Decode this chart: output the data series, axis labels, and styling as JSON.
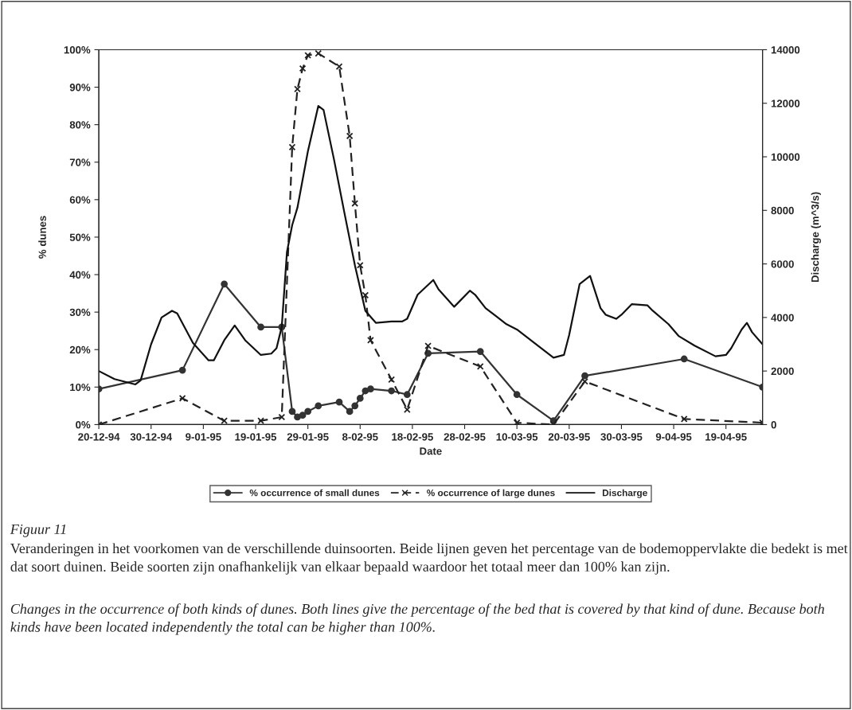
{
  "chart_data": {
    "type": "line",
    "xlabel": "Date",
    "ylabel": "% dunes",
    "y2label": "Discharge (m^3/s)",
    "xlim": [
      "1994-12-20",
      "1995-04-26"
    ],
    "xticks": [
      {
        "value": "1994-12-20",
        "label": "20-12-94"
      },
      {
        "value": "1994-12-30",
        "label": "30-12-94"
      },
      {
        "value": "1995-01-09",
        "label": "9-01-95"
      },
      {
        "value": "1995-01-19",
        "label": "19-01-95"
      },
      {
        "value": "1995-01-29",
        "label": "29-01-95"
      },
      {
        "value": "1995-02-08",
        "label": "8-02-95"
      },
      {
        "value": "1995-02-18",
        "label": "18-02-95"
      },
      {
        "value": "1995-02-28",
        "label": "28-02-95"
      },
      {
        "value": "1995-03-10",
        "label": "10-03-95"
      },
      {
        "value": "1995-03-20",
        "label": "20-03-95"
      },
      {
        "value": "1995-03-30",
        "label": "30-03-95"
      },
      {
        "value": "1995-04-09",
        "label": "9-04-95"
      },
      {
        "value": "1995-04-19",
        "label": "19-04-95"
      }
    ],
    "ylim": [
      0,
      100
    ],
    "yticks": [
      {
        "value": 0,
        "label": "0%"
      },
      {
        "value": 10,
        "label": "10%"
      },
      {
        "value": 20,
        "label": "20%"
      },
      {
        "value": 30,
        "label": "30%"
      },
      {
        "value": 40,
        "label": "40%"
      },
      {
        "value": 50,
        "label": "50%"
      },
      {
        "value": 60,
        "label": "60%"
      },
      {
        "value": 70,
        "label": "70%"
      },
      {
        "value": 80,
        "label": "80%"
      },
      {
        "value": 90,
        "label": "90%"
      },
      {
        "value": 100,
        "label": "100%"
      }
    ],
    "y2lim": [
      0,
      14000
    ],
    "y2ticks": [
      0,
      2000,
      4000,
      6000,
      8000,
      10000,
      12000,
      14000
    ],
    "grid": false,
    "legend": "bottom",
    "series": [
      {
        "name": "% occurrence of small dunes",
        "color": "#333333",
        "marker": "circle",
        "line_style": "solid",
        "x": [
          "1994-12-20",
          "1995-01-05",
          "1995-01-13",
          "1995-01-20",
          "1995-01-24",
          "1995-01-26",
          "1995-01-27",
          "1995-01-28",
          "1995-01-29",
          "1995-01-31",
          "1995-02-04",
          "1995-02-06",
          "1995-02-07",
          "1995-02-08",
          "1995-02-09",
          "1995-02-10",
          "1995-02-14",
          "1995-02-17",
          "1995-02-21",
          "1995-03-03",
          "1995-03-10",
          "1995-03-17",
          "1995-03-23",
          "1995-04-11",
          "1995-04-26"
        ],
        "values": [
          9.5,
          14.5,
          37.5,
          26,
          26,
          3.5,
          2,
          2.5,
          3.5,
          5,
          6,
          3.5,
          5,
          7,
          9,
          9.5,
          9,
          8,
          19,
          19.5,
          8,
          1,
          13,
          17.5,
          10
        ]
      },
      {
        "name": "% occurrence of large dunes",
        "color": "#222222",
        "marker": "cross",
        "line_style": "dashed",
        "x": [
          "1994-12-20",
          "1995-01-05",
          "1995-01-13",
          "1995-01-20",
          "1995-01-24",
          "1995-01-26",
          "1995-01-27",
          "1995-01-28",
          "1995-01-29",
          "1995-01-31",
          "1995-02-04",
          "1995-02-06",
          "1995-02-07",
          "1995-02-08",
          "1995-02-09",
          "1995-02-10",
          "1995-02-14",
          "1995-02-17",
          "1995-02-21",
          "1995-03-03",
          "1995-03-10",
          "1995-03-17",
          "1995-03-23",
          "1995-04-11",
          "1995-04-26"
        ],
        "values": [
          0,
          7,
          1,
          1,
          2,
          74,
          89.5,
          95,
          98.5,
          99,
          95.5,
          77,
          59,
          42.5,
          34.5,
          22.5,
          12,
          4,
          21,
          15.5,
          0.5,
          0,
          11.5,
          1.5,
          0.5
        ]
      },
      {
        "name": "Discharge",
        "color": "#111111",
        "marker": "none",
        "line_style": "solid",
        "axis": "y2",
        "x": [
          "1994-12-20",
          "1994-12-23",
          "1994-12-27",
          "1994-12-28",
          "1994-12-30",
          "1995-01-01",
          "1995-01-03",
          "1995-01-04",
          "1995-01-07",
          "1995-01-10",
          "1995-01-11",
          "1995-01-13",
          "1995-01-15",
          "1995-01-17",
          "1995-01-20",
          "1995-01-22",
          "1995-01-23",
          "1995-01-24",
          "1995-01-25",
          "1995-01-26",
          "1995-01-27",
          "1995-01-29",
          "1995-01-31",
          "1995-02-01",
          "1995-02-03",
          "1995-02-05",
          "1995-02-07",
          "1995-02-09",
          "1995-02-11",
          "1995-02-14",
          "1995-02-16",
          "1995-02-17",
          "1995-02-19",
          "1995-02-22",
          "1995-02-23",
          "1995-02-26",
          "1995-03-01",
          "1995-03-02",
          "1995-03-04",
          "1995-03-06",
          "1995-03-08",
          "1995-03-10",
          "1995-03-13",
          "1995-03-17",
          "1995-03-19",
          "1995-03-20",
          "1995-03-22",
          "1995-03-24",
          "1995-03-26",
          "1995-03-27",
          "1995-03-29",
          "1995-03-30",
          "1995-04-01",
          "1995-04-04",
          "1995-04-05",
          "1995-04-08",
          "1995-04-10",
          "1995-04-13",
          "1995-04-17",
          "1995-04-19",
          "1995-04-20",
          "1995-04-22",
          "1995-04-23",
          "1995-04-24",
          "1995-04-26"
        ],
        "values": [
          2000,
          1700,
          1500,
          1650,
          3000,
          4000,
          4250,
          4150,
          3050,
          2400,
          2400,
          3150,
          3700,
          3150,
          2600,
          2650,
          2850,
          3650,
          6450,
          7450,
          8100,
          10200,
          11900,
          11750,
          9900,
          7900,
          5950,
          4250,
          3800,
          3850,
          3850,
          3950,
          4850,
          5400,
          5050,
          4400,
          5000,
          4850,
          4350,
          4050,
          3750,
          3550,
          3100,
          2500,
          2600,
          3350,
          5250,
          5550,
          4350,
          4100,
          3950,
          4100,
          4500,
          4450,
          4250,
          3750,
          3300,
          2950,
          2550,
          2600,
          2850,
          3550,
          3800,
          3450,
          3000
        ]
      }
    ],
    "annotations": [
      "Figuur 11",
      "Veranderingen in het voorkomen van de verschillende duinsoorten. Beide lijnen geven het percentage van de bodemoppervlakte die bedekt is met dat soort duinen. Beide soorten zijn onafhankelijk van elkaar bepaald waardoor het totaal meer dan 100% kan zijn.",
      "Changes in the occurrence of both kinds of dunes. Both lines give the percentage of the bed that is covered by that kind of dune. Because both kinds have been located independently the total can be higher than 100%."
    ]
  }
}
